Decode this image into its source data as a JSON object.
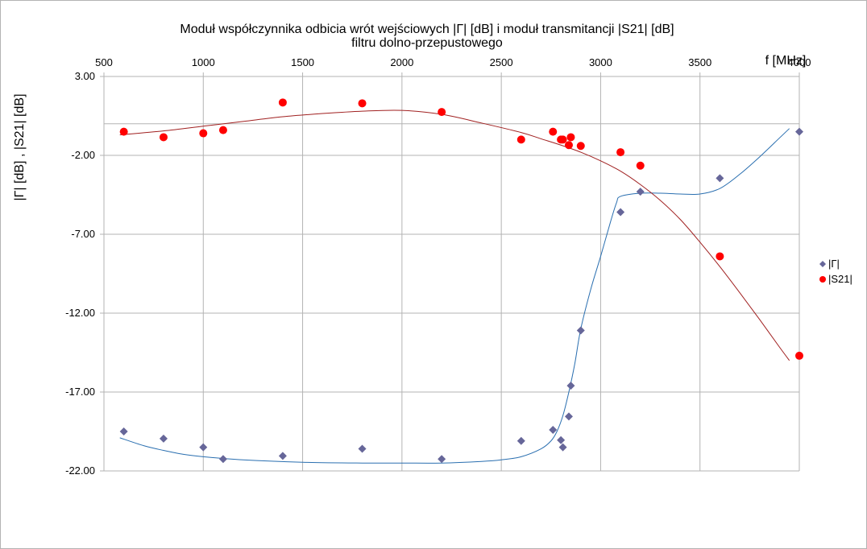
{
  "chart_data": {
    "type": "scatter",
    "title": "Moduł współczynnika odbicia wrót wejściowych |Γ| [dB] i moduł transmitancji  |S21| [dB]",
    "subtitle": "filtru dolno-przepustowego",
    "xlabel": "f [MHz]",
    "ylabel": "|Γ| [dB] , |S21| [dB]",
    "xlim": [
      500,
      4000
    ],
    "ylim": [
      -22,
      3
    ],
    "x_ticks": [
      "500",
      "1000",
      "1500",
      "2000",
      "2500",
      "3000",
      "3500",
      "4000"
    ],
    "y_ticks": [
      "3.00",
      "-2.00",
      "-7.00",
      "-12.00",
      "-17.00",
      "-22.00"
    ],
    "x_axis_position": "top",
    "grid": true,
    "legend_position": "right",
    "series": [
      {
        "name": "|Γ|",
        "marker": "diamond",
        "color": "#666699",
        "trend_color": "#2a6fb0",
        "x": [
          600,
          800,
          1000,
          1100,
          1400,
          1800,
          2200,
          2600,
          2760,
          2800,
          2810,
          2840,
          2850,
          2900,
          3100,
          3200,
          3600,
          4000
        ],
        "y": [
          -19.5,
          -19.95,
          -20.5,
          -21.25,
          -21.05,
          -20.6,
          -21.25,
          -20.1,
          -19.4,
          -20.05,
          -20.5,
          -18.55,
          -16.6,
          -13.1,
          -5.6,
          -4.3,
          -3.45,
          -0.5
        ],
        "trend_x": [
          580,
          700,
          800,
          900,
          1000,
          1200,
          1500,
          1800,
          2000,
          2200,
          2400,
          2500,
          2600,
          2700,
          2750,
          2780,
          2810,
          2840,
          2870,
          2900,
          2950,
          3000,
          3050,
          3080,
          3100,
          3200,
          3300,
          3400,
          3500,
          3600,
          3700,
          3800,
          3900,
          3950
        ],
        "trend_y": [
          -19.9,
          -20.4,
          -20.7,
          -20.95,
          -21.1,
          -21.3,
          -21.45,
          -21.5,
          -21.5,
          -21.5,
          -21.4,
          -21.3,
          -21.1,
          -20.6,
          -20.1,
          -19.5,
          -18.5,
          -17.0,
          -15.2,
          -13.0,
          -10.5,
          -8.4,
          -6.2,
          -5.0,
          -4.6,
          -4.4,
          -4.4,
          -4.45,
          -4.45,
          -4.1,
          -3.2,
          -2.1,
          -0.9,
          -0.3
        ]
      },
      {
        "name": "|S21|",
        "marker": "circle",
        "color": "#ff0000",
        "trend_color": "#a02020",
        "x": [
          600,
          800,
          1000,
          1100,
          1400,
          1800,
          2200,
          2600,
          2760,
          2800,
          2810,
          2840,
          2850,
          2900,
          3100,
          3200,
          3600,
          4000
        ],
        "y": [
          -0.5,
          -0.85,
          -0.6,
          -0.4,
          1.35,
          1.3,
          0.75,
          -1.0,
          -0.5,
          -1.0,
          -1.0,
          -1.35,
          -0.85,
          -1.4,
          -1.8,
          -2.65,
          -8.4,
          -14.7
        ],
        "trend_x": [
          580,
          800,
          1000,
          1200,
          1400,
          1600,
          1800,
          2000,
          2200,
          2400,
          2600,
          2700,
          2800,
          2900,
          3000,
          3100,
          3200,
          3300,
          3400,
          3500,
          3600,
          3700,
          3800,
          3900,
          3950
        ],
        "trend_y": [
          -0.7,
          -0.45,
          -0.15,
          0.15,
          0.45,
          0.65,
          0.8,
          0.85,
          0.6,
          0.05,
          -0.55,
          -0.95,
          -1.35,
          -1.8,
          -2.35,
          -3.0,
          -3.85,
          -4.85,
          -6.05,
          -7.5,
          -9.05,
          -10.7,
          -12.4,
          -14.15,
          -15.0
        ]
      }
    ]
  }
}
